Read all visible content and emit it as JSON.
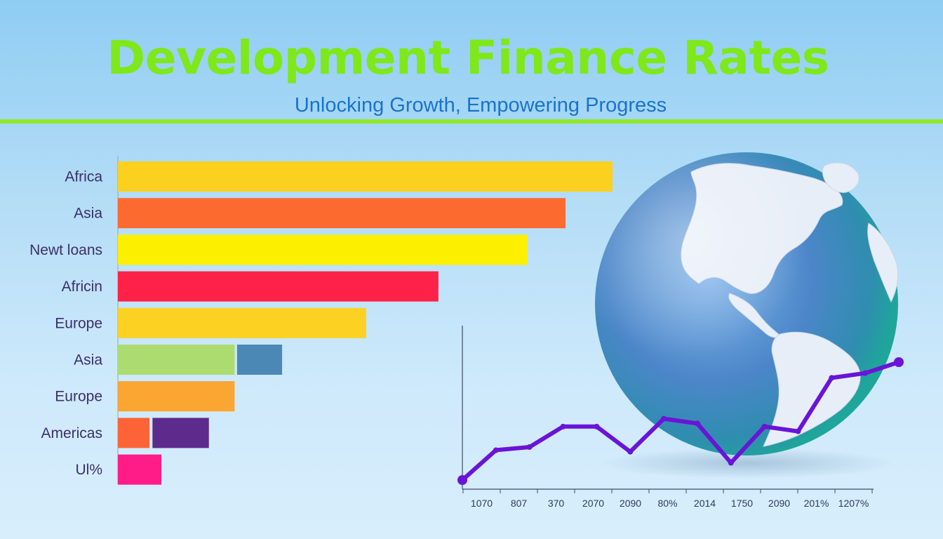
{
  "header": {
    "title": "Development Finance Rates",
    "subtitle": "Unlocking Growth, Empowering Progress"
  },
  "colors": {
    "title": "#7ee81a",
    "subtitle": "#1a72cc",
    "divider": "#8fe828",
    "line": "#6a14d8"
  },
  "chart_data": [
    {
      "type": "bar",
      "orientation": "horizontal",
      "categories": [
        "Africa",
        "Asia",
        "Newt loans",
        "Africin",
        "Europe",
        "Asia",
        "Europe",
        "Americas",
        "Ul%"
      ],
      "series": [
        {
          "values": [
            100,
            90.5,
            82.8,
            64.8,
            50.2,
            23.6,
            23.6,
            6.4,
            8.8
          ],
          "colors": [
            "#fbd01e",
            "#fc6a30",
            "#fcf000",
            "#ff2248",
            "#fcd122",
            "#acdc70",
            "#fba532",
            "#fc6438",
            "#ff1b88"
          ]
        },
        {
          "values": [
            0,
            0,
            0,
            0,
            0,
            9.1,
            0,
            11.4,
            0
          ],
          "offsets": [
            0,
            0,
            0,
            0,
            0,
            24.1,
            0,
            7.0,
            0
          ],
          "colors": [
            "",
            "",
            "",
            "",
            "",
            "#4b88b6",
            "",
            "#5c2b8c",
            ""
          ]
        }
      ],
      "xlim": [
        0,
        100
      ],
      "grid": false,
      "legend": "none"
    },
    {
      "type": "line",
      "x_tick_labels": [
        "1070",
        "807",
        "370",
        "2070",
        "2090",
        "80%",
        "2014",
        "1750",
        "2090",
        "201%",
        "1207%"
      ],
      "values": [
        0,
        19,
        21,
        34,
        34,
        18,
        39,
        36,
        11,
        34,
        31,
        65,
        68,
        75
      ],
      "ylim": [
        0,
        100
      ],
      "grid": false,
      "legend": "none"
    }
  ],
  "globe": {
    "name": "globe-illustration"
  }
}
